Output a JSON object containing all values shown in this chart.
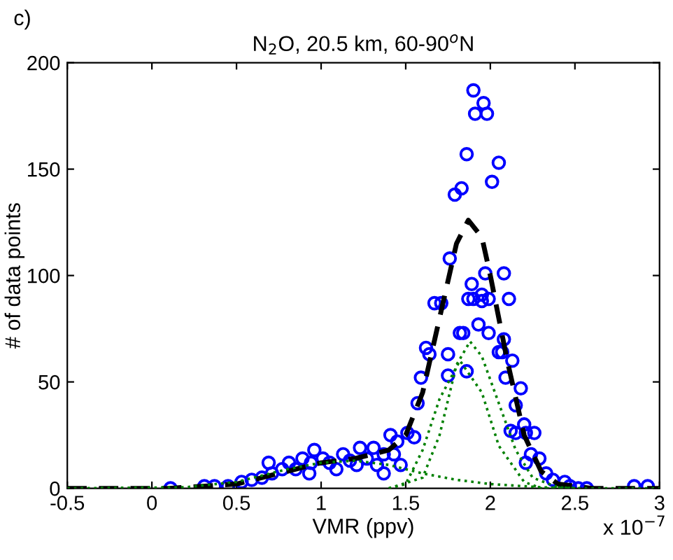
{
  "chart_data": {
    "type": "scatter",
    "title": "N$_{2}$O, 20.5 km, 60-90$^{o}$N",
    "xlabel": "VMR (ppv)",
    "ylabel": "# of data points",
    "annotations": [
      "c)",
      "x 10$^{−7}$"
    ],
    "xlim": [
      -0.5,
      3
    ],
    "ylim": [
      0,
      200
    ],
    "xticks": [
      -0.5,
      0,
      0.5,
      1,
      1.5,
      2,
      2.5,
      3
    ],
    "yticks": [
      0,
      50,
      100,
      150,
      200
    ],
    "grid": false,
    "series": [
      {
        "marker": "circle",
        "color": "#0000ff",
        "x": [
          0.11,
          0.31,
          0.37,
          0.45,
          0.53,
          0.59,
          0.65,
          0.69,
          0.71,
          0.77,
          0.81,
          0.85,
          0.89,
          0.93,
          0.94,
          0.96,
          1.01,
          1.05,
          1.09,
          1.13,
          1.17,
          1.21,
          1.23,
          1.27,
          1.31,
          1.33,
          1.37,
          1.37,
          1.41,
          1.43,
          1.45,
          1.47,
          1.51,
          1.55,
          1.57,
          1.59,
          1.62,
          1.64,
          1.67,
          1.71,
          1.75,
          1.75,
          1.76,
          1.79,
          1.82,
          1.83,
          1.84,
          1.86,
          1.86,
          1.87,
          1.89,
          1.9,
          1.9,
          1.91,
          1.93,
          1.95,
          1.95,
          1.96,
          1.97,
          1.98,
          1.99,
          1.99,
          2.01,
          2.05,
          2.05,
          2.07,
          2.08,
          2.08,
          2.09,
          2.11,
          2.12,
          2.13,
          2.15,
          2.15,
          2.18,
          2.2,
          2.21,
          2.21,
          2.24,
          2.26,
          2.29,
          2.33,
          2.37,
          2.44,
          2.47,
          2.52,
          2.57,
          2.85,
          2.93
        ],
        "values": [
          0,
          1,
          1,
          1,
          3,
          4,
          5,
          12,
          7,
          9,
          12,
          9,
          14,
          7,
          12,
          18,
          14,
          12,
          9,
          16,
          13,
          11,
          19,
          14,
          19,
          11,
          16,
          7,
          25,
          16,
          22,
          11,
          26,
          24,
          40,
          52,
          66,
          63,
          87,
          87,
          63,
          53,
          108,
          138,
          73,
          141,
          73,
          157,
          55,
          89,
          96,
          187,
          89,
          176,
          77,
          91,
          88,
          181,
          101,
          176,
          89,
          73,
          144,
          153,
          64,
          64,
          101,
          70,
          52,
          89,
          27,
          60,
          39,
          26,
          47,
          30,
          26,
          12,
          16,
          26,
          14,
          7,
          4,
          3,
          1,
          0,
          0,
          1,
          1
        ]
      },
      {
        "type": "line",
        "line_style": "dashed",
        "color": "#000000",
        "x": [
          -0.5,
          0.1,
          0.5,
          0.8,
          1.0,
          1.2,
          1.4,
          1.5,
          1.6,
          1.7,
          1.8,
          1.87,
          1.95,
          2.0,
          2.1,
          2.2,
          2.3,
          2.4,
          2.6,
          3.0
        ],
        "values": [
          0,
          0,
          2,
          8,
          12,
          14,
          18,
          25,
          45,
          80,
          115,
          126,
          118,
          100,
          60,
          25,
          8,
          2,
          0,
          0
        ]
      },
      {
        "type": "line",
        "line_style": "dotted",
        "color": "#008000",
        "x": [
          -0.5,
          0.2,
          0.5,
          0.8,
          1.0,
          1.2,
          1.4,
          1.6,
          1.8,
          2.0,
          2.3,
          2.6,
          3.0
        ],
        "values": [
          0,
          0.5,
          3,
          9,
          12,
          13,
          11,
          7,
          4,
          2,
          0.5,
          0,
          0
        ]
      },
      {
        "type": "line",
        "line_style": "dotted",
        "color": "#008000",
        "x": [
          1.4,
          1.5,
          1.6,
          1.7,
          1.82,
          1.95,
          2.05,
          2.2,
          2.3,
          2.5
        ],
        "values": [
          0,
          2,
          18,
          42,
          60,
          45,
          20,
          3,
          0,
          0
        ]
      },
      {
        "type": "line",
        "line_style": "dotted",
        "color": "#008000",
        "x": [
          1.4,
          1.6,
          1.7,
          1.8,
          1.88,
          1.95,
          2.05,
          2.15,
          2.25,
          2.4,
          2.5
        ],
        "values": [
          0,
          5,
          25,
          58,
          69,
          62,
          40,
          18,
          5,
          0.5,
          0
        ]
      }
    ]
  }
}
